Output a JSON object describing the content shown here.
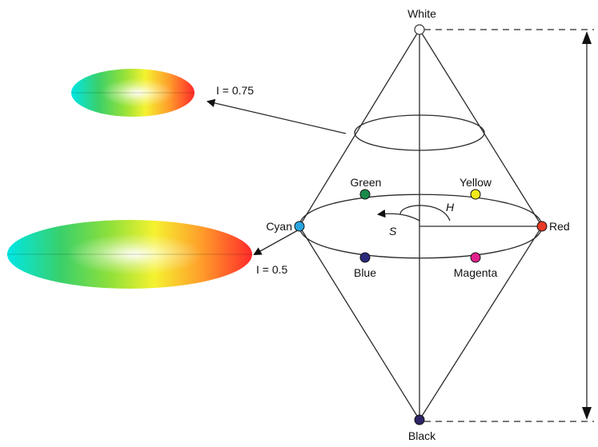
{
  "labels": {
    "white": "White",
    "black": "Black",
    "green": "Green",
    "yellow": "Yellow",
    "cyan": "Cyan",
    "red": "Red",
    "blue": "Blue",
    "magenta": "Magenta",
    "hue_symbol": "H",
    "saturation_symbol": "S",
    "intensity_075": "I = 0.75",
    "intensity_05": "I = 0.5"
  },
  "colors": {
    "white": "#ffffff",
    "black": "#2b2466",
    "green": "#1a8a4a",
    "yellow": "#f2ea1a",
    "cyan": "#2aa6e0",
    "red": "#e83a25",
    "blue": "#2b2a7a",
    "magenta": "#e0208c"
  }
}
